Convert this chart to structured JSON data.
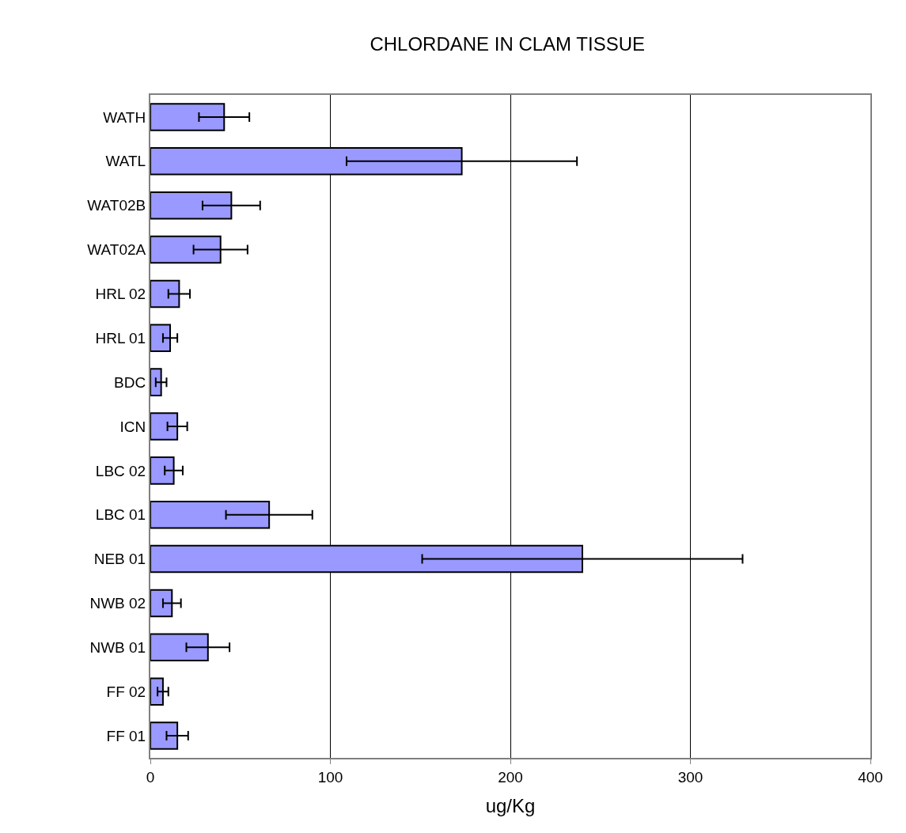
{
  "chart_data": {
    "type": "bar",
    "orientation": "horizontal",
    "title": "CHLORDANE IN CLAM TISSUE",
    "xlabel": "ug/Kg",
    "categories": [
      "WATH",
      "WATL",
      "WAT02B",
      "WAT02A",
      "HRL 02",
      "HRL 01",
      "BDC",
      "ICN",
      "LBC 02",
      "LBC 01",
      "NEB 01",
      "NWB 02",
      "NWB 01",
      "FF 02",
      "FF 01"
    ],
    "values": [
      41,
      173,
      45,
      39,
      16,
      11,
      6,
      15,
      13,
      66,
      240,
      12,
      32,
      7,
      15
    ],
    "errors": [
      14,
      64,
      16,
      15,
      6,
      4,
      3,
      5.5,
      5,
      24,
      89,
      5,
      12,
      3,
      6
    ],
    "color": "#9999ff",
    "xlim": [
      0,
      400
    ],
    "xticks": [
      0,
      100,
      200,
      300,
      400
    ],
    "grid": "x",
    "legend": false
  }
}
